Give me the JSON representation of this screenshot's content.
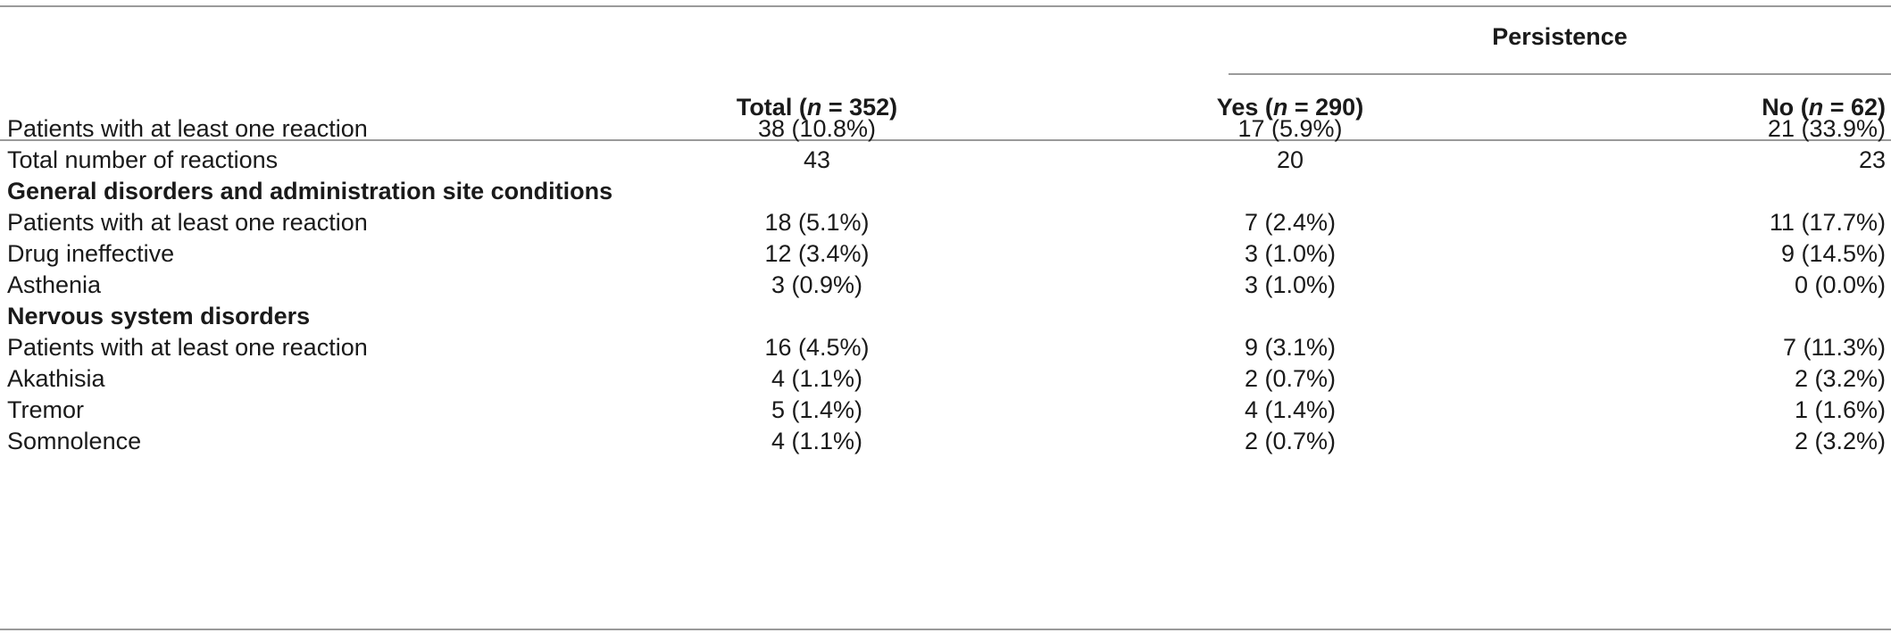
{
  "header": {
    "group_label": "Persistence",
    "columns": [
      {
        "label": "Total",
        "n_prefix": "(",
        "n_italic": "n",
        "n_suffix": " = 352)"
      },
      {
        "label": "Yes",
        "n_prefix": "(",
        "n_italic": "n",
        "n_suffix": " = 290)"
      },
      {
        "label": "No",
        "n_prefix": "(",
        "n_italic": "n",
        "n_suffix": " = 62)"
      }
    ]
  },
  "rows": [
    {
      "label": "Patients with at least one reaction",
      "bold": false,
      "values": [
        "38 (10.8%)",
        "17 (5.9%)",
        "21 (33.9%)"
      ]
    },
    {
      "label": "Total number of reactions",
      "bold": false,
      "values": [
        "43",
        "20",
        "23"
      ]
    },
    {
      "label": "General disorders and administration site conditions",
      "bold": true,
      "values": []
    },
    {
      "label": "Patients with at least one reaction",
      "bold": false,
      "values": [
        "18 (5.1%)",
        "7 (2.4%)",
        "11 (17.7%)"
      ]
    },
    {
      "label": "Drug ineffective",
      "bold": false,
      "values": [
        "12 (3.4%)",
        "3 (1.0%)",
        "9 (14.5%)"
      ]
    },
    {
      "label": "Asthenia",
      "bold": false,
      "values": [
        "3 (0.9%)",
        "3 (1.0%)",
        "0 (0.0%)"
      ]
    },
    {
      "label": "Nervous system disorders",
      "bold": true,
      "values": []
    },
    {
      "label": "Patients with at least one reaction",
      "bold": false,
      "values": [
        "16 (4.5%)",
        "9 (3.1%)",
        "7 (11.3%)"
      ]
    },
    {
      "label": "Akathisia",
      "bold": false,
      "values": [
        "4 (1.1%)",
        "2 (0.7%)",
        "2 (3.2%)"
      ]
    },
    {
      "label": "Tremor",
      "bold": false,
      "values": [
        "5 (1.4%)",
        "4 (1.4%)",
        "1 (1.6%)"
      ]
    },
    {
      "label": "Somnolence",
      "bold": false,
      "values": [
        "4 (1.1%)",
        "2 (0.7%)",
        "2 (3.2%)"
      ]
    }
  ]
}
